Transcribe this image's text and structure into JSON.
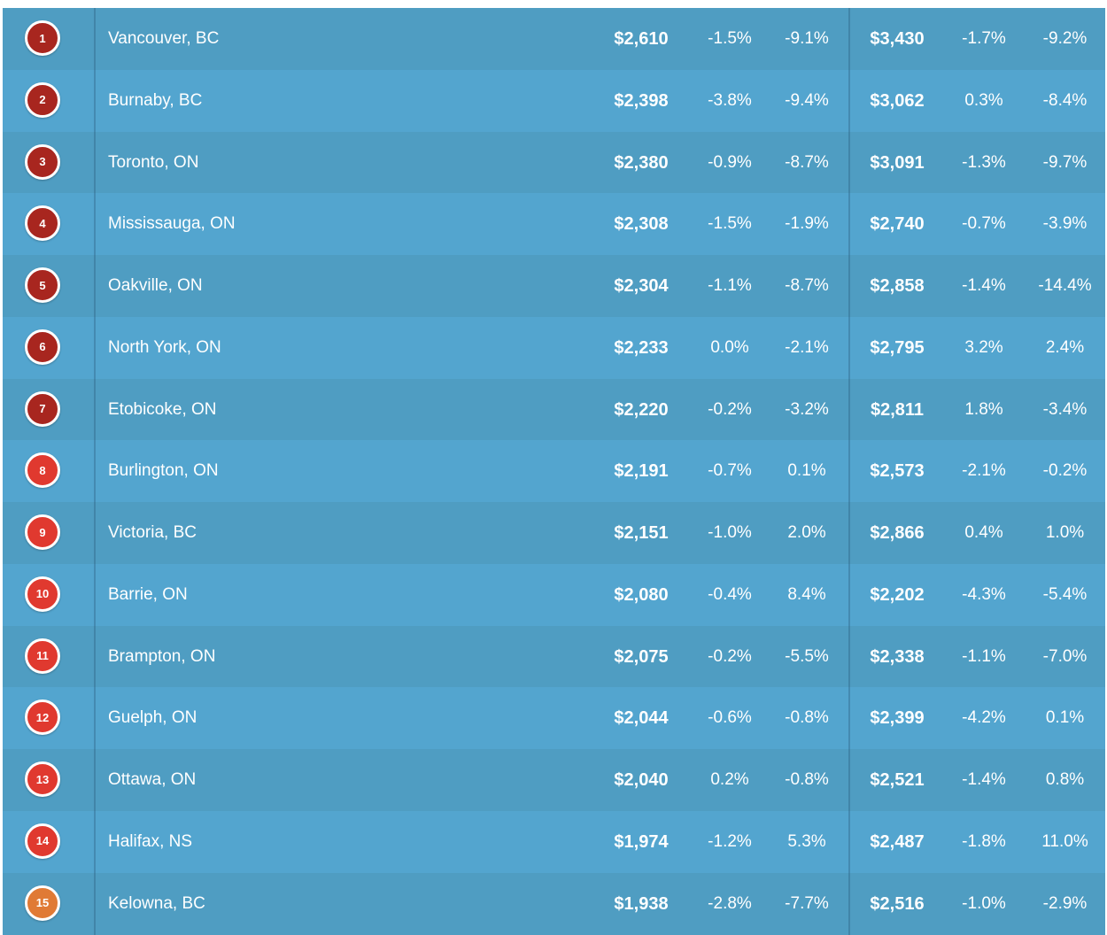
{
  "chart_data": {
    "type": "table",
    "columns": [
      "rank",
      "city",
      "one_bed_price",
      "one_bed_mom",
      "one_bed_yoy",
      "two_bed_price",
      "two_bed_mom",
      "two_bed_yoy"
    ],
    "rows": [
      {
        "rank": "1",
        "city": "Vancouver, BC",
        "one_bed_price": "$2,610",
        "one_bed_mom": "-1.5%",
        "one_bed_yoy": "-9.1%",
        "two_bed_price": "$3,430",
        "two_bed_mom": "-1.7%",
        "two_bed_yoy": "-9.2%",
        "badge_color": "#a8261f"
      },
      {
        "rank": "2",
        "city": "Burnaby, BC",
        "one_bed_price": "$2,398",
        "one_bed_mom": "-3.8%",
        "one_bed_yoy": "-9.4%",
        "two_bed_price": "$3,062",
        "two_bed_mom": "0.3%",
        "two_bed_yoy": "-8.4%",
        "badge_color": "#a8261f"
      },
      {
        "rank": "3",
        "city": "Toronto, ON",
        "one_bed_price": "$2,380",
        "one_bed_mom": "-0.9%",
        "one_bed_yoy": "-8.7%",
        "two_bed_price": "$3,091",
        "two_bed_mom": "-1.3%",
        "two_bed_yoy": "-9.7%",
        "badge_color": "#a8261f"
      },
      {
        "rank": "4",
        "city": "Mississauga, ON",
        "one_bed_price": "$2,308",
        "one_bed_mom": "-1.5%",
        "one_bed_yoy": "-1.9%",
        "two_bed_price": "$2,740",
        "two_bed_mom": "-0.7%",
        "two_bed_yoy": "-3.9%",
        "badge_color": "#a8261f"
      },
      {
        "rank": "5",
        "city": "Oakville, ON",
        "one_bed_price": "$2,304",
        "one_bed_mom": "-1.1%",
        "one_bed_yoy": "-8.7%",
        "two_bed_price": "$2,858",
        "two_bed_mom": "-1.4%",
        "two_bed_yoy": "-14.4%",
        "badge_color": "#a8261f"
      },
      {
        "rank": "6",
        "city": "North York, ON",
        "one_bed_price": "$2,233",
        "one_bed_mom": "0.0%",
        "one_bed_yoy": "-2.1%",
        "two_bed_price": "$2,795",
        "two_bed_mom": "3.2%",
        "two_bed_yoy": "2.4%",
        "badge_color": "#a8261f"
      },
      {
        "rank": "7",
        "city": "Etobicoke, ON",
        "one_bed_price": "$2,220",
        "one_bed_mom": "-0.2%",
        "one_bed_yoy": "-3.2%",
        "two_bed_price": "$2,811",
        "two_bed_mom": "1.8%",
        "two_bed_yoy": "-3.4%",
        "badge_color": "#a8261f"
      },
      {
        "rank": "8",
        "city": "Burlington, ON",
        "one_bed_price": "$2,191",
        "one_bed_mom": "-0.7%",
        "one_bed_yoy": "0.1%",
        "two_bed_price": "$2,573",
        "two_bed_mom": "-2.1%",
        "two_bed_yoy": "-0.2%",
        "badge_color": "#e0392f"
      },
      {
        "rank": "9",
        "city": "Victoria, BC",
        "one_bed_price": "$2,151",
        "one_bed_mom": "-1.0%",
        "one_bed_yoy": "2.0%",
        "two_bed_price": "$2,866",
        "two_bed_mom": "0.4%",
        "two_bed_yoy": "1.0%",
        "badge_color": "#e0392f"
      },
      {
        "rank": "10",
        "city": "Barrie, ON",
        "one_bed_price": "$2,080",
        "one_bed_mom": "-0.4%",
        "one_bed_yoy": "8.4%",
        "two_bed_price": "$2,202",
        "two_bed_mom": "-4.3%",
        "two_bed_yoy": "-5.4%",
        "badge_color": "#e0392f"
      },
      {
        "rank": "11",
        "city": "Brampton, ON",
        "one_bed_price": "$2,075",
        "one_bed_mom": "-0.2%",
        "one_bed_yoy": "-5.5%",
        "two_bed_price": "$2,338",
        "two_bed_mom": "-1.1%",
        "two_bed_yoy": "-7.0%",
        "badge_color": "#e0392f"
      },
      {
        "rank": "12",
        "city": "Guelph, ON",
        "one_bed_price": "$2,044",
        "one_bed_mom": "-0.6%",
        "one_bed_yoy": "-0.8%",
        "two_bed_price": "$2,399",
        "two_bed_mom": "-4.2%",
        "two_bed_yoy": "0.1%",
        "badge_color": "#e0392f"
      },
      {
        "rank": "13",
        "city": "Ottawa, ON",
        "one_bed_price": "$2,040",
        "one_bed_mom": "0.2%",
        "one_bed_yoy": "-0.8%",
        "two_bed_price": "$2,521",
        "two_bed_mom": "-1.4%",
        "two_bed_yoy": "0.8%",
        "badge_color": "#e0392f"
      },
      {
        "rank": "14",
        "city": "Halifax, NS",
        "one_bed_price": "$1,974",
        "one_bed_mom": "-1.2%",
        "one_bed_yoy": "5.3%",
        "two_bed_price": "$2,487",
        "two_bed_mom": "-1.8%",
        "two_bed_yoy": "11.0%",
        "badge_color": "#e0392f"
      },
      {
        "rank": "15",
        "city": "Kelowna, BC",
        "one_bed_price": "$1,938",
        "one_bed_mom": "-2.8%",
        "one_bed_yoy": "-7.7%",
        "two_bed_price": "$2,516",
        "two_bed_mom": "-1.0%",
        "two_bed_yoy": "-2.9%",
        "badge_color": "#e07a35"
      }
    ]
  }
}
